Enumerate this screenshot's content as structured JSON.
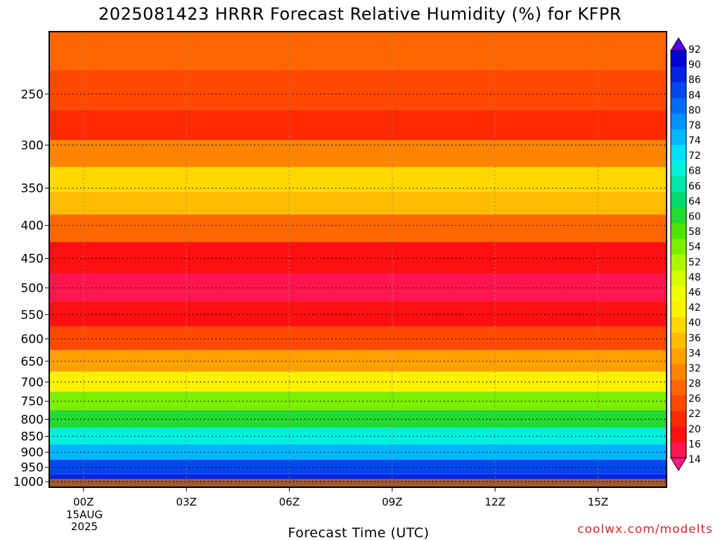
{
  "chart_data": {
    "type": "heatmap",
    "title": "2025081423 HRRR Forecast Relative Humidity (%) for KFPR",
    "xlabel": "Forecast Time (UTC)",
    "ylabel": "",
    "x_ticks": [
      "00Z",
      "03Z",
      "06Z",
      "09Z",
      "12Z",
      "15Z"
    ],
    "x_date_label": [
      "15AUG",
      "2025"
    ],
    "x_hours": [
      0,
      3,
      6,
      9,
      12,
      15
    ],
    "xlim": [
      -1,
      17
    ],
    "y_ticks": [
      250,
      300,
      350,
      400,
      450,
      500,
      550,
      600,
      650,
      700,
      750,
      800,
      850,
      900,
      950,
      1000
    ],
    "ylim": [
      200,
      1020
    ],
    "y_scale": "log",
    "grid": true,
    "colorbar": {
      "levels": [
        14,
        16,
        20,
        22,
        26,
        28,
        32,
        34,
        36,
        40,
        42,
        46,
        48,
        52,
        54,
        58,
        60,
        64,
        66,
        68,
        72,
        74,
        78,
        80,
        84,
        86,
        90,
        92
      ],
      "colors": [
        "#ff1a8c",
        "#ff1650",
        "#ff1010",
        "#ff2a00",
        "#ff4800",
        "#ff6600",
        "#ff8400",
        "#ffa000",
        "#ffbc00",
        "#ffd800",
        "#fff200",
        "#f0ff00",
        "#d2ff00",
        "#a8f800",
        "#7cee00",
        "#4ee400",
        "#22da30",
        "#00d870",
        "#00e6a8",
        "#00f2dc",
        "#00e0ff",
        "#00b8ff",
        "#0092ff",
        "#006cf6",
        "#0048ec",
        "#0024e0",
        "#0000d8",
        "#5a00e8"
      ]
    },
    "rh_profile_by_pressure": [
      {
        "p": 210,
        "rh": 30
      },
      {
        "p": 250,
        "rh": 26
      },
      {
        "p": 280,
        "rh": 22
      },
      {
        "p": 310,
        "rh": 32
      },
      {
        "p": 340,
        "rh": 40
      },
      {
        "p": 370,
        "rh": 36
      },
      {
        "p": 400,
        "rh": 28
      },
      {
        "p": 450,
        "rh": 20
      },
      {
        "p": 500,
        "rh": 18
      },
      {
        "p": 550,
        "rh": 20
      },
      {
        "p": 600,
        "rh": 26
      },
      {
        "p": 650,
        "rh": 34
      },
      {
        "p": 700,
        "rh": 44
      },
      {
        "p": 750,
        "rh": 54
      },
      {
        "p": 800,
        "rh": 62
      },
      {
        "p": 850,
        "rh": 68
      },
      {
        "p": 900,
        "rh": 74
      },
      {
        "p": 950,
        "rh": 84
      },
      {
        "p": 1000,
        "rh": 86
      }
    ]
  },
  "credit": "coolwx.com/modelts"
}
